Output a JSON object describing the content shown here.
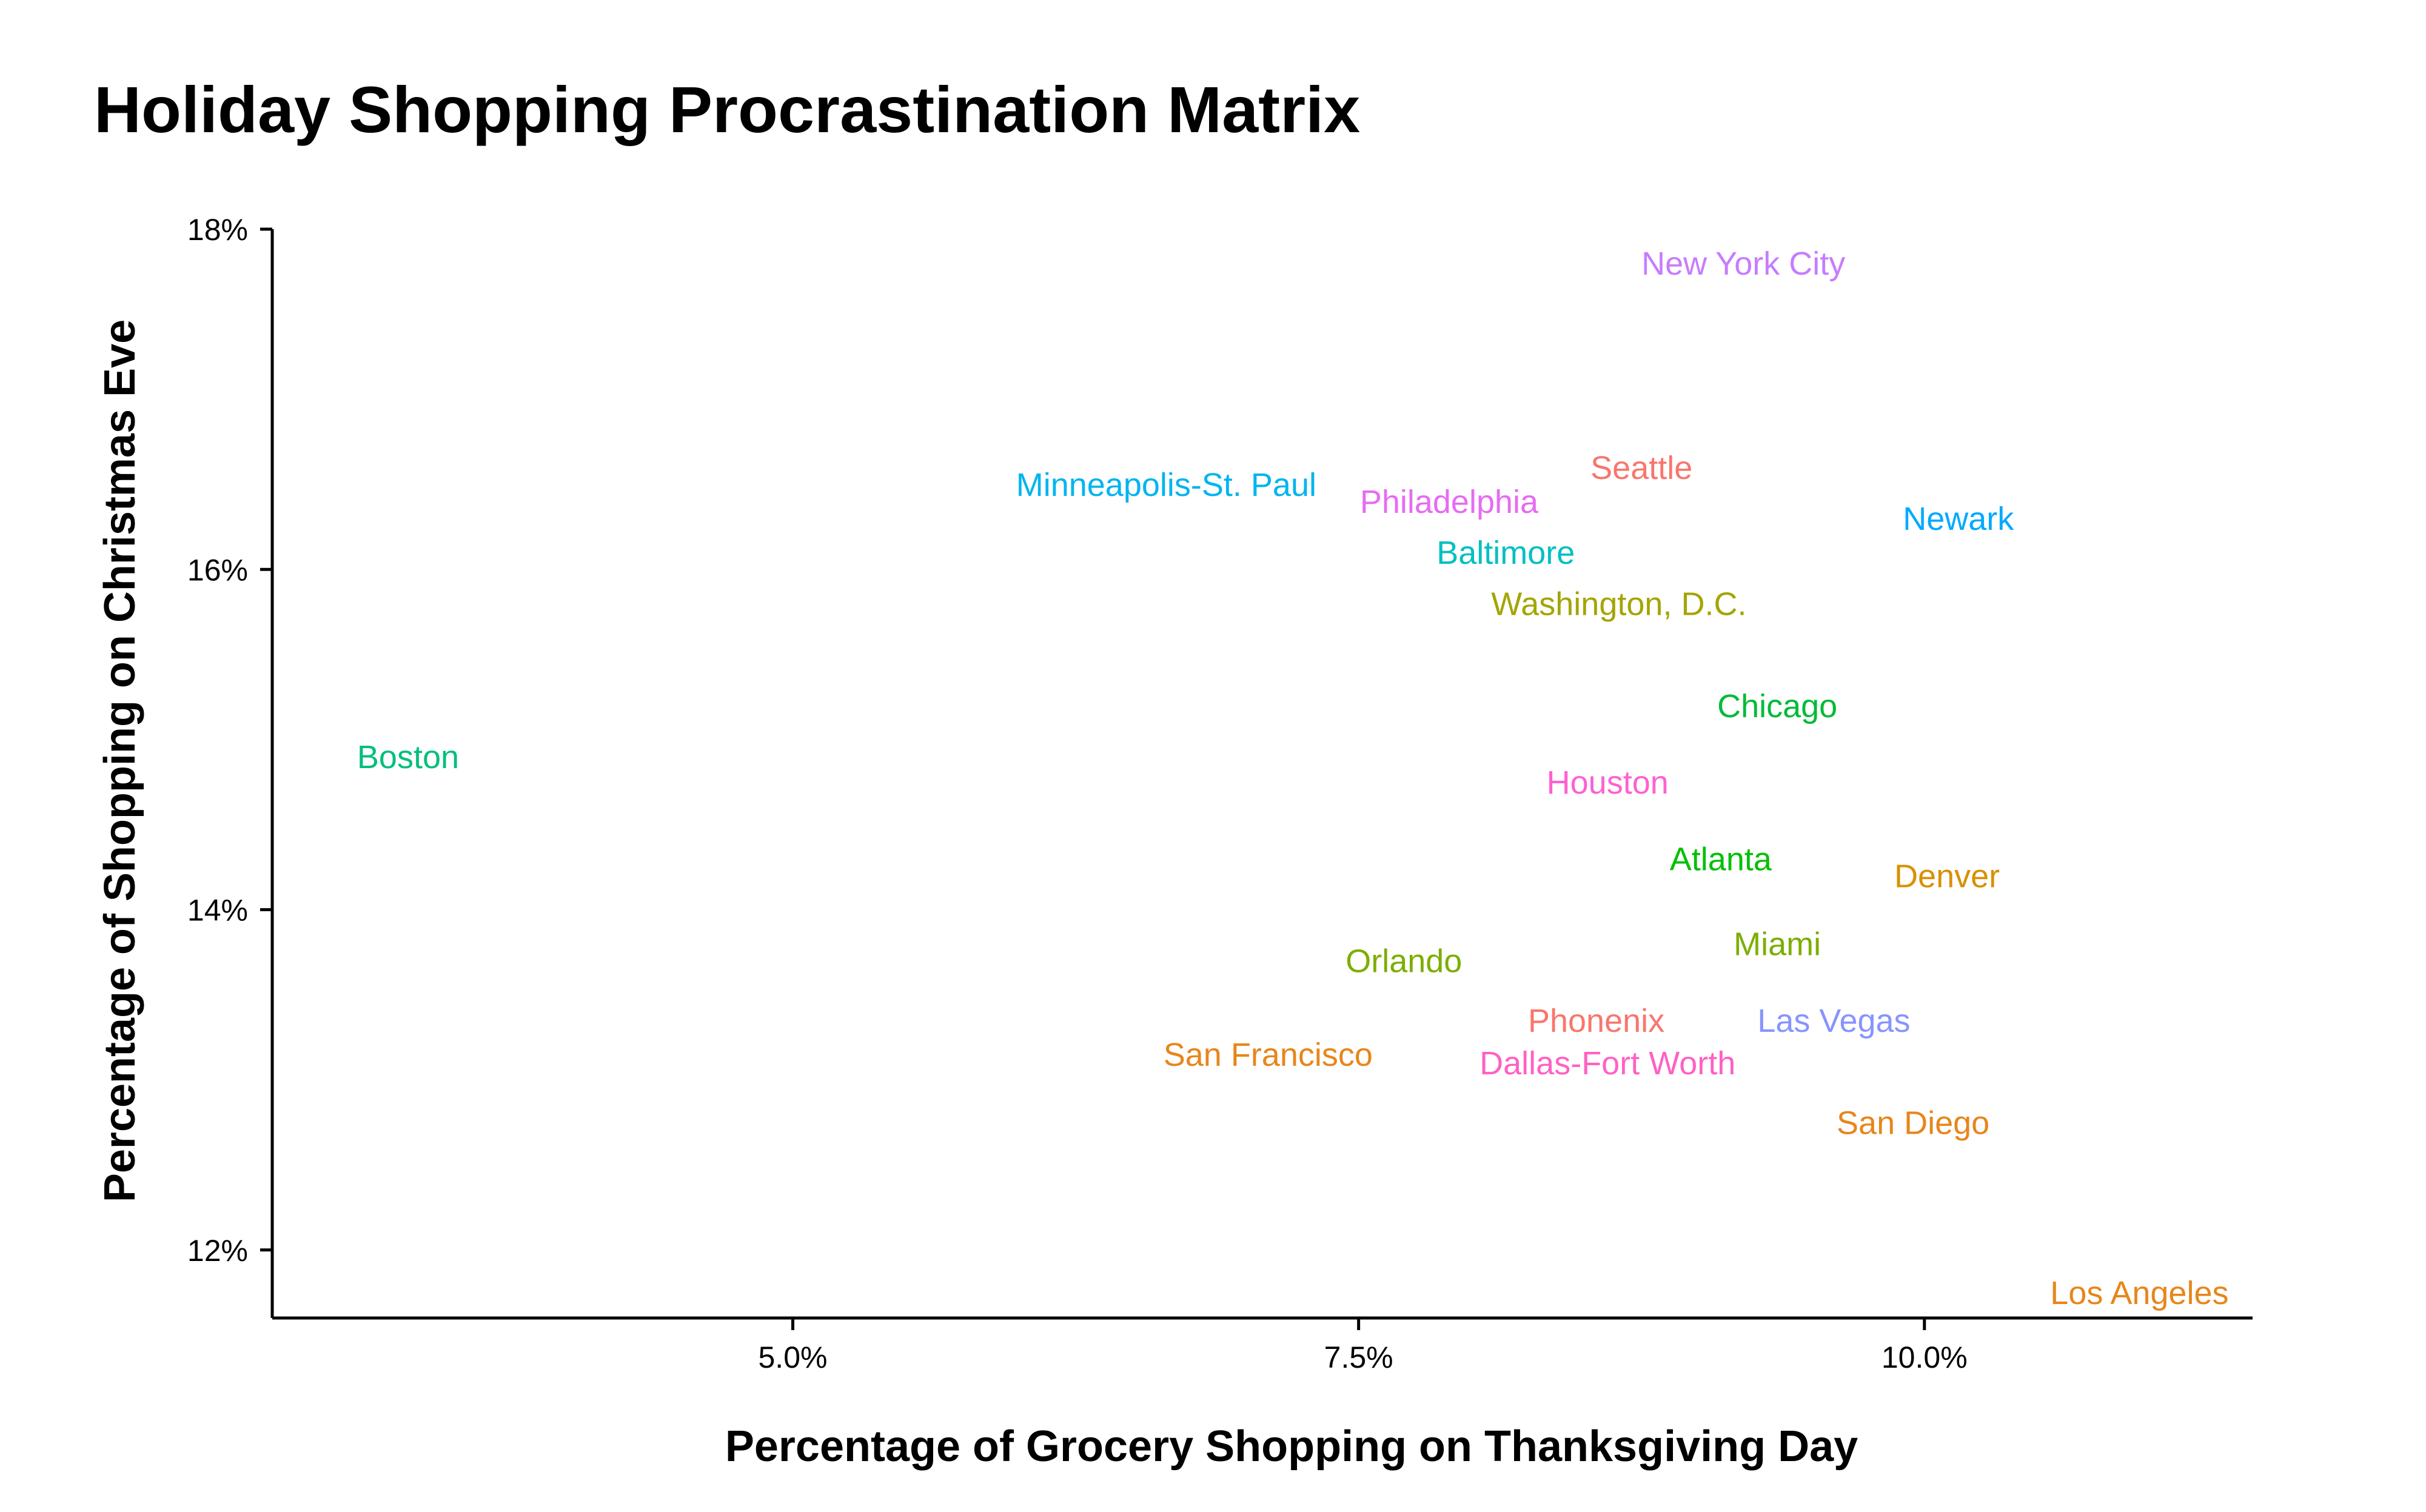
{
  "chart_data": {
    "type": "scatter",
    "title": "Holiday Shopping Procrastination Matrix",
    "xlabel": "Percentage of Grocery Shopping on Thanksgiving Day",
    "ylabel": "Percentage of Shopping on Christmas Eve",
    "xlim": [
      2.7,
      11.45
    ],
    "ylim": [
      11.6,
      18.0
    ],
    "x_ticks": [
      5.0,
      7.5,
      10.0
    ],
    "x_tick_labels": [
      "5.0%",
      "7.5%",
      "10.0%"
    ],
    "y_ticks": [
      12,
      14,
      16,
      18
    ],
    "y_tick_labels": [
      "12%",
      "14%",
      "16%",
      "18%"
    ],
    "grid": false,
    "points": [
      {
        "label": "New York City",
        "x": 9.2,
        "y": 17.8,
        "color": "#c77cff"
      },
      {
        "label": "Seattle",
        "x": 8.75,
        "y": 16.6,
        "color": "#f8766d"
      },
      {
        "label": "Minneapolis-St. Paul",
        "x": 6.65,
        "y": 16.5,
        "color": "#00b4ef"
      },
      {
        "label": "Philadelphia",
        "x": 7.9,
        "y": 16.4,
        "color": "#e76bf3"
      },
      {
        "label": "Newark",
        "x": 10.15,
        "y": 16.3,
        "color": "#00a9ff"
      },
      {
        "label": "Baltimore",
        "x": 8.15,
        "y": 16.1,
        "color": "#00bfc4"
      },
      {
        "label": "Washington, D.C.",
        "x": 8.65,
        "y": 15.8,
        "color": "#a3a500"
      },
      {
        "label": "Chicago",
        "x": 9.35,
        "y": 15.2,
        "color": "#00ba38"
      },
      {
        "label": "Boston",
        "x": 3.3,
        "y": 14.9,
        "color": "#00bf7d"
      },
      {
        "label": "Houston",
        "x": 8.6,
        "y": 14.75,
        "color": "#fd61d1"
      },
      {
        "label": "Atlanta",
        "x": 9.1,
        "y": 14.3,
        "color": "#00c000"
      },
      {
        "label": "Denver",
        "x": 10.1,
        "y": 14.2,
        "color": "#d89000"
      },
      {
        "label": "Miami",
        "x": 9.35,
        "y": 13.8,
        "color": "#7cae00"
      },
      {
        "label": "Orlando",
        "x": 7.7,
        "y": 13.7,
        "color": "#7cae00"
      },
      {
        "label": "Phonenix",
        "x": 8.55,
        "y": 13.35,
        "color": "#f8766d"
      },
      {
        "label": "Las Vegas",
        "x": 9.6,
        "y": 13.35,
        "color": "#8794ff"
      },
      {
        "label": "San Francisco",
        "x": 7.1,
        "y": 13.15,
        "color": "#e7861b"
      },
      {
        "label": "Dallas-Fort Worth",
        "x": 8.6,
        "y": 13.1,
        "color": "#ff61c3"
      },
      {
        "label": "San Diego",
        "x": 9.95,
        "y": 12.75,
        "color": "#e7861b"
      },
      {
        "label": "Los Angeles",
        "x": 10.95,
        "y": 11.75,
        "color": "#e7861b"
      }
    ]
  }
}
